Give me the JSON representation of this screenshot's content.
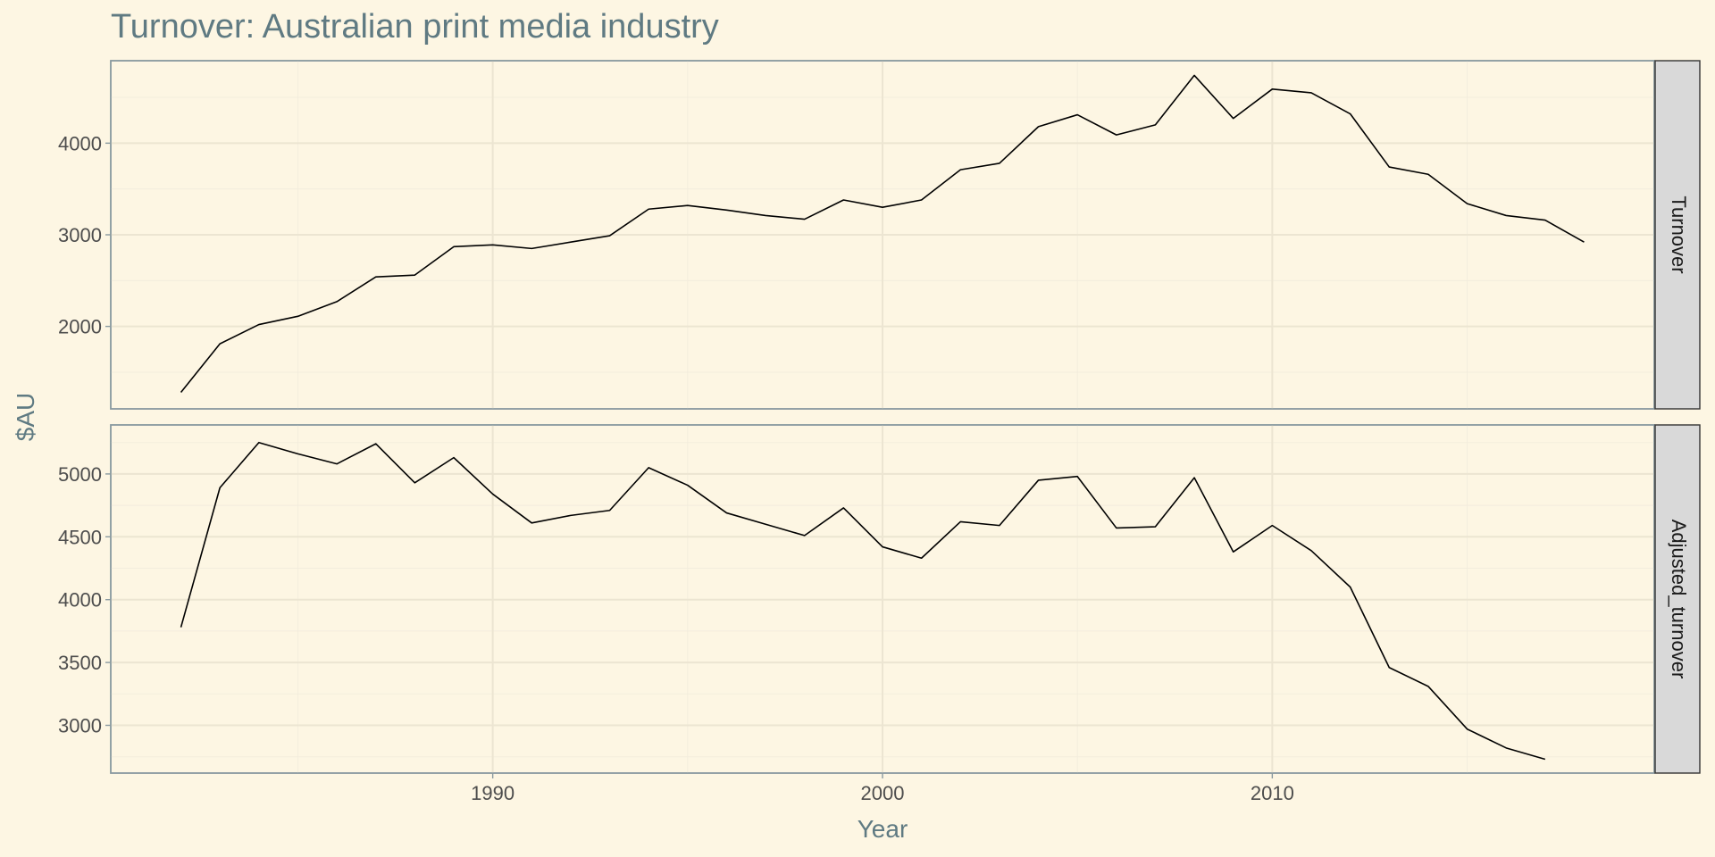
{
  "chart_data": {
    "type": "line",
    "title": "Turnover: Australian print media industry",
    "xlabel": "Year",
    "ylabel": "$AU",
    "xlim": [
      1980.2,
      2019.8
    ],
    "x_ticks": [
      1990,
      2000,
      2010
    ],
    "grid": true,
    "facets": [
      {
        "name": "Turnover",
        "ylim": [
          1100,
          4900
        ],
        "y_ticks": [
          2000,
          3000,
          4000
        ],
        "x": [
          1982,
          1983,
          1984,
          1985,
          1986,
          1987,
          1988,
          1989,
          1990,
          1991,
          1992,
          1993,
          1994,
          1995,
          1996,
          1997,
          1998,
          1999,
          2000,
          2001,
          2002,
          2003,
          2004,
          2005,
          2006,
          2007,
          2008,
          2009,
          2010,
          2011,
          2012,
          2013,
          2014,
          2015,
          2016,
          2017,
          2018
        ],
        "values": [
          1280,
          1810,
          2020,
          2110,
          2270,
          2540,
          2560,
          2870,
          2890,
          2850,
          2920,
          2990,
          3280,
          3320,
          3270,
          3210,
          3170,
          3380,
          3300,
          3380,
          3710,
          3780,
          4180,
          4310,
          4090,
          4200,
          4740,
          4270,
          4590,
          4550,
          4320,
          3740,
          3660,
          3340,
          3210,
          3160,
          2920
        ]
      },
      {
        "name": "Adjusted_turnover",
        "ylim": [
          2620,
          5390
        ],
        "y_ticks": [
          3000,
          3500,
          4000,
          4500,
          5000
        ],
        "x": [
          1982,
          1983,
          1984,
          1985,
          1986,
          1987,
          1988,
          1989,
          1990,
          1991,
          1992,
          1993,
          1994,
          1995,
          1996,
          1997,
          1998,
          1999,
          2000,
          2001,
          2002,
          2003,
          2004,
          2005,
          2006,
          2007,
          2008,
          2009,
          2010,
          2011,
          2012,
          2013,
          2014,
          2015,
          2016,
          2017
        ],
        "values": [
          3780,
          4890,
          5250,
          5160,
          5080,
          5240,
          4930,
          5130,
          4840,
          4610,
          4670,
          4710,
          5050,
          4910,
          4690,
          4600,
          4510,
          4730,
          4420,
          4330,
          4620,
          4590,
          4950,
          4980,
          4570,
          4580,
          4970,
          4380,
          4590,
          4390,
          4100,
          3460,
          3310,
          2970,
          2820,
          2730
        ]
      }
    ]
  }
}
